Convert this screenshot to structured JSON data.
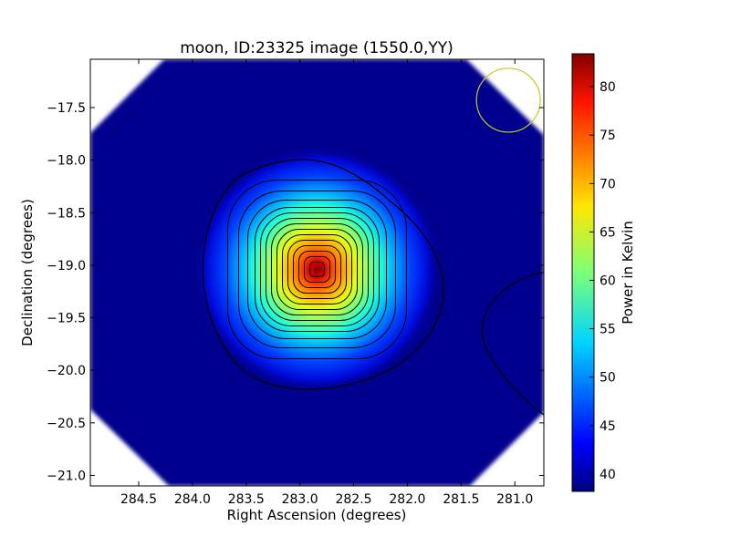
{
  "chart_data": {
    "type": "heatmap",
    "title": "moon, ID:23325 image (1550.0,YY)",
    "xlabel": "Right Ascension (degrees)",
    "ylabel": "Declination (degrees)",
    "xlim": [
      284.95,
      280.73
    ],
    "ylim": [
      -21.1,
      -17.04
    ],
    "x_ticks": [
      "284.5",
      "284.0",
      "283.5",
      "283.0",
      "282.5",
      "282.0",
      "281.5",
      "281.0"
    ],
    "x_tick_values": [
      284.5,
      284.0,
      283.5,
      283.0,
      282.5,
      282.0,
      281.5,
      281.0
    ],
    "y_ticks": [
      "−17.5",
      "−18.0",
      "−18.5",
      "−19.0",
      "−19.5",
      "−20.0",
      "−20.5",
      "−21.0"
    ],
    "y_tick_values": [
      -17.5,
      -18.0,
      -18.5,
      -19.0,
      -19.5,
      -20.0,
      -20.5,
      -21.0
    ],
    "colorbar": {
      "label": "Power in Kelvin",
      "range": [
        38.2,
        83.4
      ],
      "ticks": [
        "80",
        "75",
        "70",
        "65",
        "60",
        "55",
        "50",
        "45",
        "40"
      ],
      "tick_values": [
        80,
        75,
        70,
        65,
        60,
        55,
        50,
        45,
        40
      ],
      "colormap": "jet"
    },
    "peak": {
      "ra": 282.84,
      "dec": -19.04,
      "value": 83.4
    },
    "background_value": 38.5,
    "beam_marker": {
      "ra": 281.06,
      "dec": -17.43,
      "radius_deg": 0.3,
      "color": "#c8c81e"
    },
    "grid": false
  }
}
